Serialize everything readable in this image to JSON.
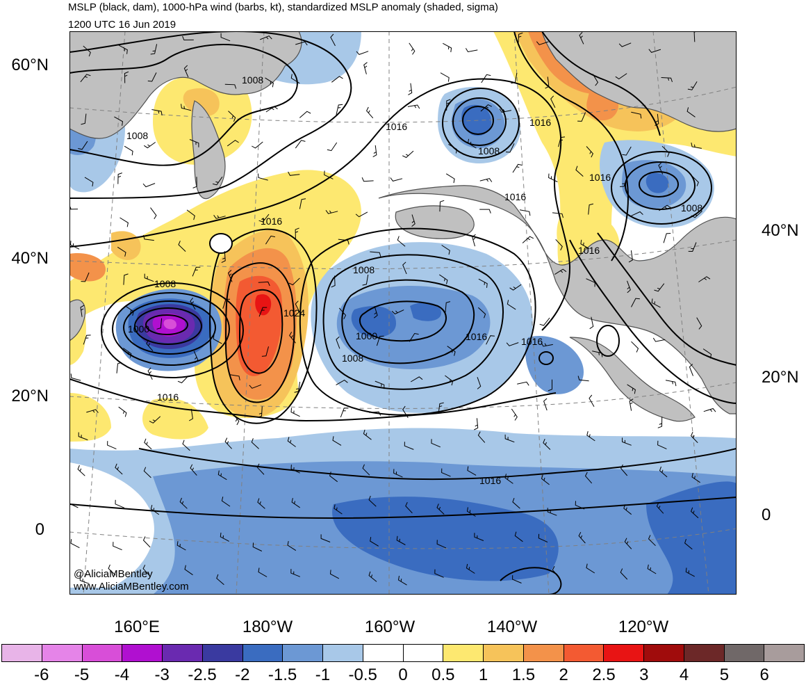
{
  "title_line1": "MSLP (black, dam), 1000-hPa wind (barbs, kt), standardized MSLP anomaly (shaded, sigma)",
  "title_line2": "1200 UTC 16 Jun 2019",
  "credits": [
    "@AliciaMBentley",
    "www.AliciaMBentley.com"
  ],
  "lon_labels": [
    "160°E",
    "180°W",
    "160°W",
    "140°W",
    "120°W"
  ],
  "lat_labels_left": [
    "60°N",
    "40°N",
    "20°N",
    "0"
  ],
  "lat_labels_right": [
    "40°N",
    "20°N",
    "0"
  ],
  "isobar_labels": [
    "1008",
    "1008",
    "1016",
    "1016",
    "1008",
    "1016",
    "1016",
    "1008",
    "1016",
    "1008",
    "1008",
    "1024",
    "1000",
    "1016",
    "1016",
    "1000",
    "1008",
    "1016",
    "1016"
  ],
  "colorbar": {
    "labels": [
      "-6",
      "-5",
      "-4",
      "-3",
      "-2.5",
      "-2",
      "-1.5",
      "-1",
      "-0.5",
      "0",
      "0.5",
      "1",
      "1.5",
      "2",
      "2.5",
      "3",
      "4",
      "5",
      "6"
    ],
    "colors": [
      "#e8b4e8",
      "#e584e8",
      "#d84ed8",
      "#b010d0",
      "#6a2ab0",
      "#3a3aa0",
      "#3a6cc0",
      "#6c98d4",
      "#a8c8e8",
      "#ffffff",
      "#ffffff",
      "#fde870",
      "#f6c35a",
      "#f3924a",
      "#f35a32",
      "#e81414",
      "#a00c0c",
      "#6c2828",
      "#706868",
      "#a89c9c"
    ]
  },
  "colors": {
    "land": "#c0c0c0",
    "coast": "#505050",
    "isobar": "#000000",
    "grid": "#808080"
  }
}
